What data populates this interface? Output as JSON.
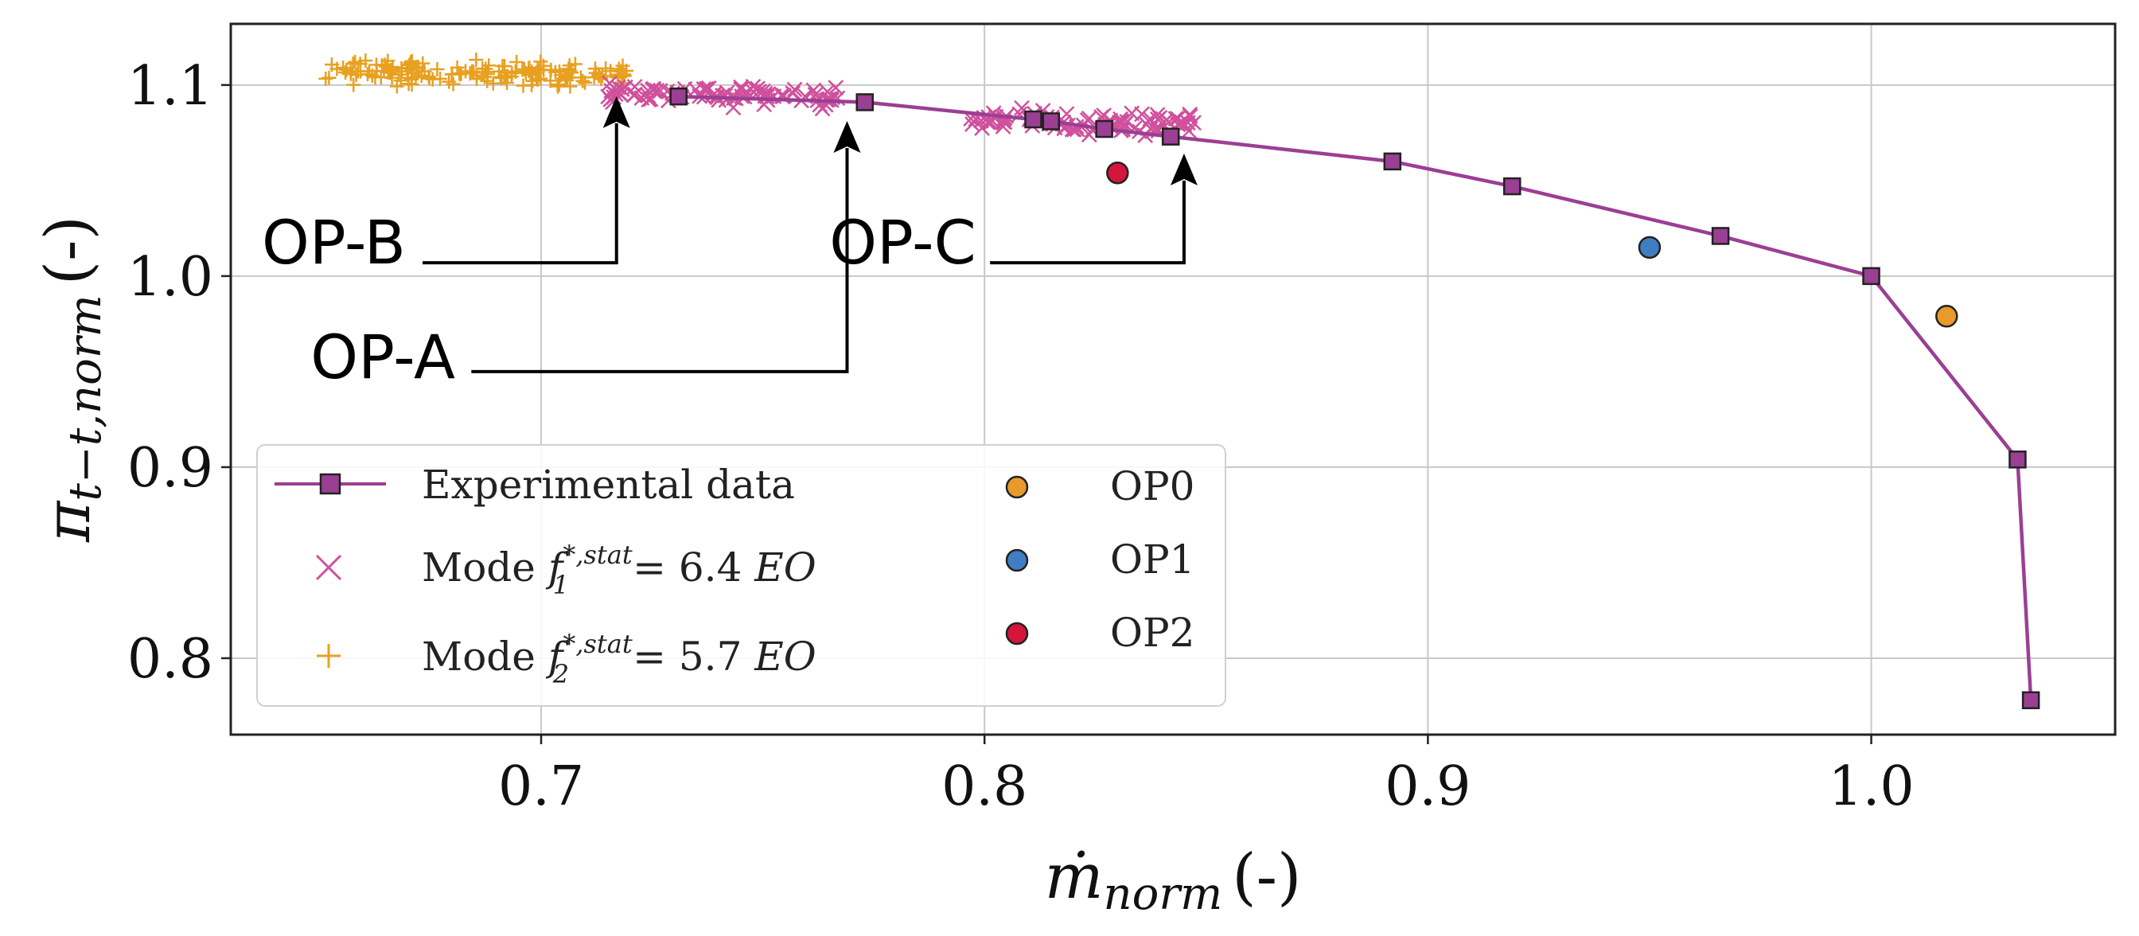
{
  "chart_data": {
    "type": "scatter",
    "title": "",
    "xlabel": "ṁnorm (-)",
    "xlabel_main": "ṁ",
    "xlabel_sub": "norm",
    "xlabel_unit": "(-)",
    "ylabel": "πt−t,norm (-)",
    "ylabel_main": "π",
    "ylabel_sub": "t−t,norm",
    "ylabel_unit": "(-)",
    "xlim": [
      0.63,
      1.055
    ],
    "ylim": [
      0.76,
      1.132
    ],
    "xticks": [
      {
        "value": 0.7,
        "label": "0.7"
      },
      {
        "value": 0.8,
        "label": "0.8"
      },
      {
        "value": 0.9,
        "label": "0.9"
      },
      {
        "value": 1.0,
        "label": "1.0"
      }
    ],
    "yticks": [
      {
        "value": 0.8,
        "label": "0.8"
      },
      {
        "value": 0.9,
        "label": "0.9"
      },
      {
        "value": 1.0,
        "label": "1.0"
      },
      {
        "value": 1.1,
        "label": "1.1"
      }
    ],
    "grid": true,
    "series": [
      {
        "name": "Experimental data",
        "kind": "line-square",
        "color": "#9b3f94",
        "x": [
          0.731,
          0.773,
          0.811,
          0.815,
          0.827,
          0.842,
          0.892,
          0.919,
          0.966,
          1.0,
          1.033,
          1.036
        ],
        "y": [
          1.094,
          1.091,
          1.082,
          1.081,
          1.077,
          1.073,
          1.06,
          1.047,
          1.021,
          1.0,
          0.904,
          0.778
        ]
      },
      {
        "name": "Mode f*,stat 1 = 6.4 EO",
        "legend_prefix": "Mode",
        "legend_f": "f",
        "legend_sup": "*,stat",
        "legend_sub": "1",
        "legend_value": "= 6.4",
        "legend_unit": "EO",
        "kind": "x-cloud",
        "color": "#d0509c",
        "clusters": [
          {
            "x_min": 0.715,
            "x_max": 0.768,
            "y_center": 1.095,
            "y_spread": 0.008,
            "count": 90
          },
          {
            "x_min": 0.795,
            "x_max": 0.848,
            "y_center": 1.081,
            "y_spread": 0.008,
            "count": 90
          }
        ]
      },
      {
        "name": "Mode f*,stat 2 = 5.7 EO",
        "legend_prefix": "Mode",
        "legend_f": "f",
        "legend_sup": "*,stat",
        "legend_sub": "2",
        "legend_value": "= 5.7",
        "legend_unit": "EO",
        "kind": "plus-cloud",
        "color": "#e8a020",
        "clusters": [
          {
            "x_min": 0.651,
            "x_max": 0.72,
            "y_center": 1.106,
            "y_spread": 0.009,
            "count": 170
          }
        ]
      },
      {
        "name": "OP0",
        "kind": "point",
        "color": "#e89a2c",
        "x": [
          1.017
        ],
        "y": [
          0.979
        ]
      },
      {
        "name": "OP1",
        "kind": "point",
        "color": "#3f7fc1",
        "x": [
          0.95
        ],
        "y": [
          1.015
        ]
      },
      {
        "name": "OP2",
        "kind": "point",
        "color": "#d4153c",
        "x": [
          0.83
        ],
        "y": [
          1.054
        ]
      }
    ],
    "annotations": [
      {
        "text": "OP-B",
        "target_x": 0.717,
        "target_y": 1.1,
        "label_x": 0.637,
        "label_y": 1.01,
        "bend_y": 1.007
      },
      {
        "text": "OP-A",
        "target_x": 0.769,
        "target_y": 1.087,
        "label_x": 0.648,
        "label_y": 0.95,
        "bend_y": 0.95
      },
      {
        "text": "OP-C",
        "target_x": 0.845,
        "target_y": 1.07,
        "label_x": 0.765,
        "label_y": 1.01,
        "bend_y": 1.007
      }
    ],
    "legend_position": "lower-left"
  }
}
